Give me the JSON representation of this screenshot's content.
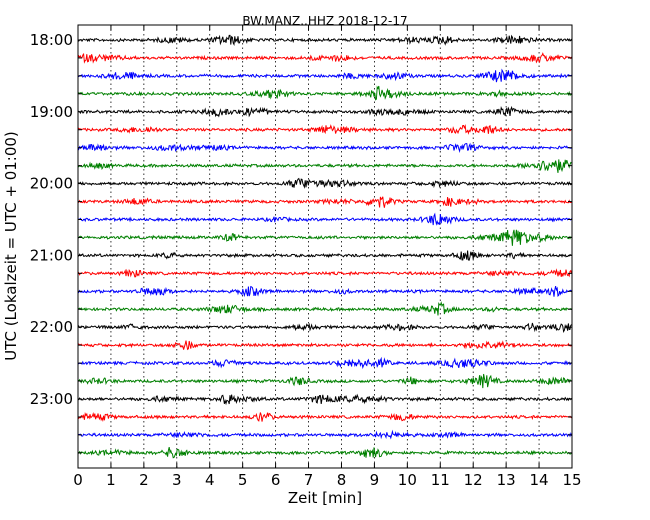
{
  "chart_data": {
    "type": "line",
    "title": "BW.MANZ..HHZ 2018-12-17",
    "xlabel": "Zeit  [min]",
    "ylabel": "UTC (Lokalzeit = UTC + 01:00)",
    "xlim": [
      0,
      15
    ],
    "x_ticks": [
      "0",
      "1",
      "2",
      "3",
      "4",
      "5",
      "6",
      "7",
      "8",
      "9",
      "10",
      "11",
      "12",
      "13",
      "14",
      "15"
    ],
    "y_tick_labels": [
      "18:00",
      "19:00",
      "20:00",
      "21:00",
      "22:00",
      "23:00"
    ],
    "trace_colors": [
      "#000000",
      "#ff0000",
      "#0000ff",
      "#008000"
    ],
    "vertical_grid": "dotted",
    "traces": [
      {
        "start": "18:00",
        "color": "#000000"
      },
      {
        "start": "18:15",
        "color": "#ff0000"
      },
      {
        "start": "18:30",
        "color": "#0000ff"
      },
      {
        "start": "18:45",
        "color": "#008000"
      },
      {
        "start": "19:00",
        "color": "#000000"
      },
      {
        "start": "19:15",
        "color": "#ff0000"
      },
      {
        "start": "19:30",
        "color": "#0000ff"
      },
      {
        "start": "19:45",
        "color": "#008000"
      },
      {
        "start": "20:00",
        "color": "#000000"
      },
      {
        "start": "20:15",
        "color": "#ff0000"
      },
      {
        "start": "20:30",
        "color": "#0000ff"
      },
      {
        "start": "20:45",
        "color": "#008000"
      },
      {
        "start": "21:00",
        "color": "#000000"
      },
      {
        "start": "21:15",
        "color": "#ff0000"
      },
      {
        "start": "21:30",
        "color": "#0000ff"
      },
      {
        "start": "21:45",
        "color": "#008000"
      },
      {
        "start": "22:00",
        "color": "#000000"
      },
      {
        "start": "22:15",
        "color": "#ff0000"
      },
      {
        "start": "22:30",
        "color": "#0000ff"
      },
      {
        "start": "22:45",
        "color": "#008000"
      },
      {
        "start": "23:00",
        "color": "#000000"
      },
      {
        "start": "23:15",
        "color": "#ff0000"
      },
      {
        "start": "23:30",
        "color": "#0000ff"
      },
      {
        "start": "23:45",
        "color": "#008000"
      }
    ]
  }
}
